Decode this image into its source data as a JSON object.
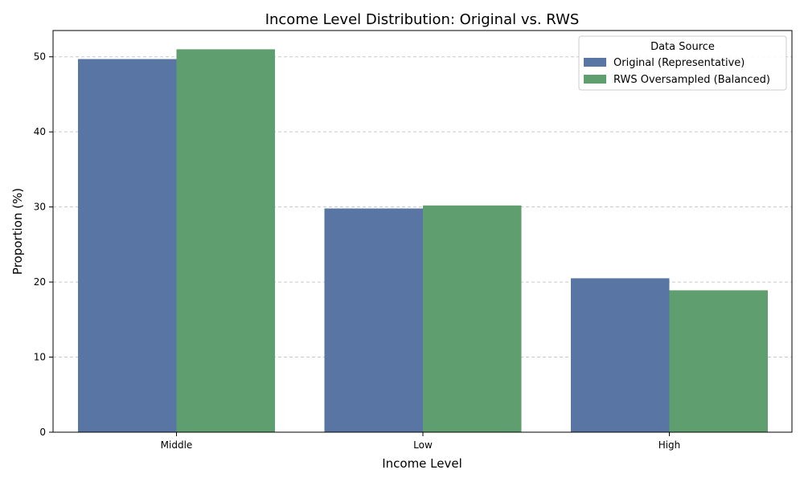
{
  "chart_data": {
    "type": "bar",
    "title": "Income Level Distribution: Original vs. RWS",
    "xlabel": "Income Level",
    "ylabel": "Proportion (%)",
    "categories": [
      "Middle",
      "Low",
      "High"
    ],
    "ylim": [
      0,
      53.5
    ],
    "yticks": [
      0,
      10,
      20,
      30,
      40,
      50
    ],
    "grid": "y-dashed",
    "legend": {
      "title": "Data Source",
      "placement": "top-right"
    },
    "series": [
      {
        "name": "Original (Representative)",
        "color": "#5975a4",
        "values": [
          49.7,
          29.8,
          20.5
        ]
      },
      {
        "name": "RWS Oversampled (Balanced)",
        "color": "#5f9e6e",
        "values": [
          51.0,
          30.2,
          18.9
        ]
      }
    ]
  }
}
